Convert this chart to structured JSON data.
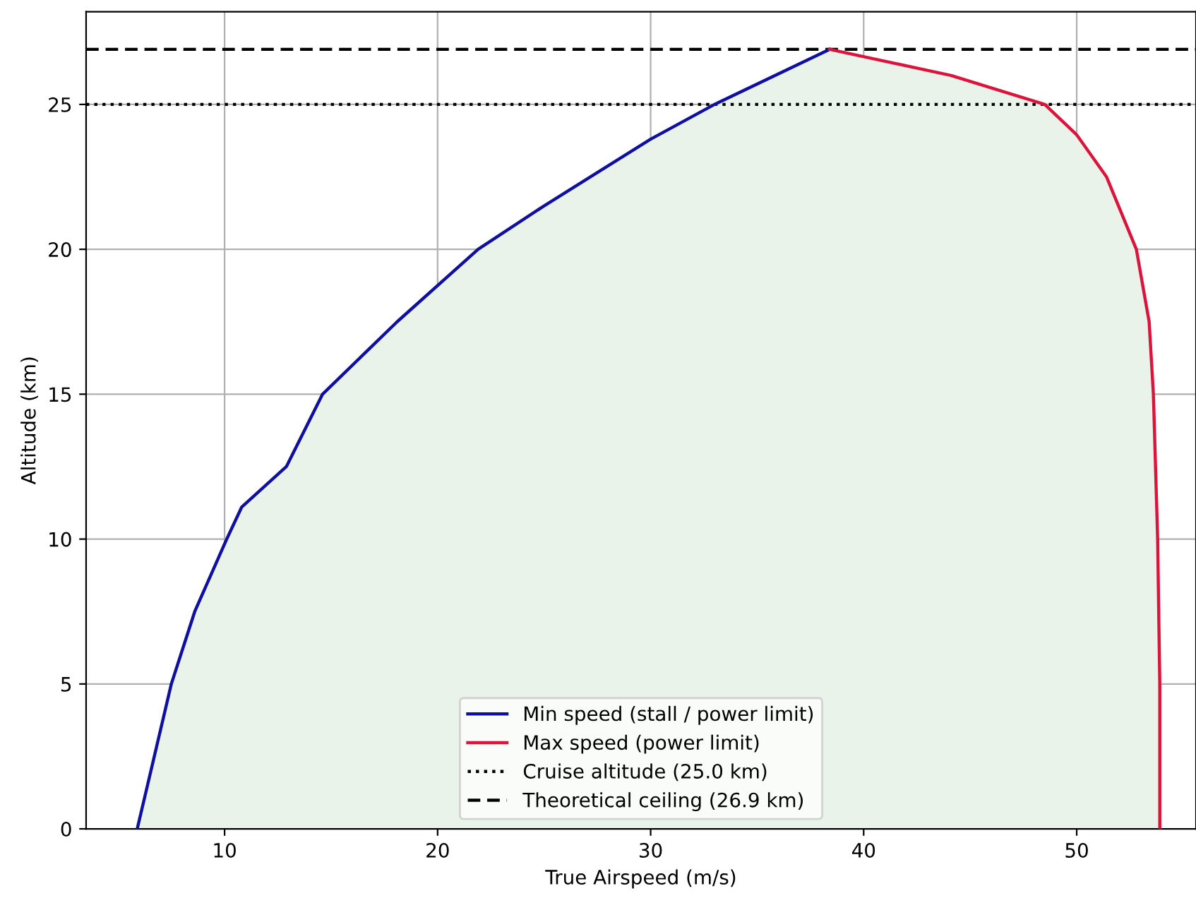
{
  "chart_data": {
    "type": "area",
    "xlabel": "True Airspeed (m/s)",
    "ylabel": "Altitude (km)",
    "xlim": [
      3.5,
      55.6
    ],
    "ylim": [
      0,
      28.2
    ],
    "xticks": [
      10,
      20,
      30,
      40,
      50
    ],
    "yticks": [
      0,
      5,
      10,
      15,
      20,
      25
    ],
    "grid": true,
    "legend": "bottom",
    "series": [
      {
        "name": "Min speed (stall / power limit)",
        "color": "#1010a0",
        "x": [
          5.9,
          6.7,
          7.5,
          8.6,
          10.1,
          10.8,
          12.9,
          14.6,
          18.1,
          21.9,
          25,
          30,
          33.0,
          38.4
        ],
        "values": [
          0,
          2.5,
          5,
          7.5,
          10,
          11.1,
          12.5,
          15,
          17.5,
          20,
          21.5,
          23.8,
          25,
          26.9
        ]
      },
      {
        "name": "Max speed (power limit)",
        "color": "#dc143c",
        "x": [
          38.4,
          44.1,
          48.5,
          50,
          51.4,
          52.8,
          53.4,
          53.6,
          53.8,
          53.9,
          53.9
        ],
        "values": [
          26.9,
          26,
          25,
          23.95,
          22.5,
          20,
          17.5,
          15,
          10,
          5,
          0
        ]
      }
    ],
    "ref_lines": [
      {
        "axis": "y",
        "value": 25,
        "label": "Cruise altitude (25.0 km)",
        "color": "#000000",
        "line_style": "dotted"
      },
      {
        "axis": "y",
        "value": 26.9,
        "label": "Theoretical ceiling (26.9 km)",
        "color": "#000000",
        "line_style": "dashed"
      }
    ]
  }
}
